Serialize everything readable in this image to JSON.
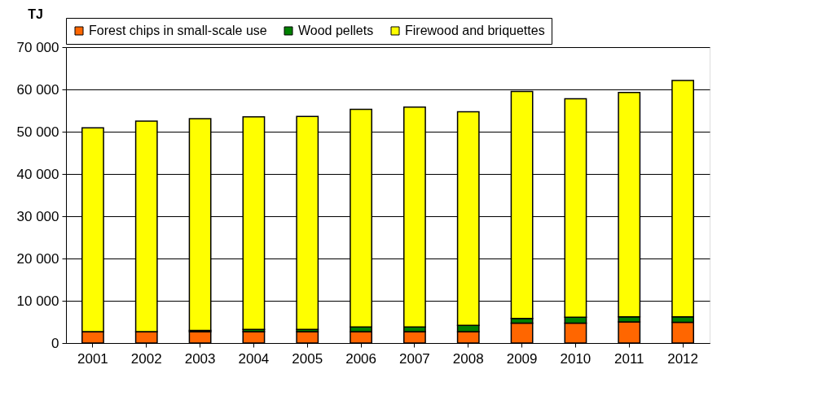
{
  "chart_data": {
    "type": "bar",
    "stacked": true,
    "ylabel": "TJ",
    "categories": [
      "2001",
      "2002",
      "2003",
      "2004",
      "2005",
      "2006",
      "2007",
      "2008",
      "2009",
      "2010",
      "2011",
      "2012"
    ],
    "series": [
      {
        "name": "Forest chips in small-scale use",
        "color": "#ff6600",
        "values": [
          2700,
          2700,
          2700,
          2700,
          2700,
          2700,
          2700,
          2700,
          4700,
          4700,
          5000,
          4900
        ]
      },
      {
        "name": "Wood pellets",
        "color": "#008000",
        "values": [
          null,
          null,
          300,
          500,
          500,
          1100,
          1100,
          1500,
          1100,
          1400,
          1200,
          1300
        ]
      },
      {
        "name": "Firewood and briquettes",
        "color": "#ffff00",
        "values": [
          48200,
          49800,
          50100,
          50300,
          50400,
          51500,
          52000,
          50500,
          53700,
          51700,
          53100,
          55900
        ]
      }
    ],
    "ylim": [
      0,
      70000
    ],
    "yticks": [
      {
        "value": 0,
        "label": "0"
      },
      {
        "value": 10000,
        "label": "10 000"
      },
      {
        "value": 20000,
        "label": "20 000"
      },
      {
        "value": 30000,
        "label": "30 000"
      },
      {
        "value": 40000,
        "label": "40 000"
      },
      {
        "value": 50000,
        "label": "50 000"
      },
      {
        "value": 60000,
        "label": "60 000"
      },
      {
        "value": 70000,
        "label": "70 000"
      }
    ],
    "grid": "y",
    "legend": "top"
  }
}
